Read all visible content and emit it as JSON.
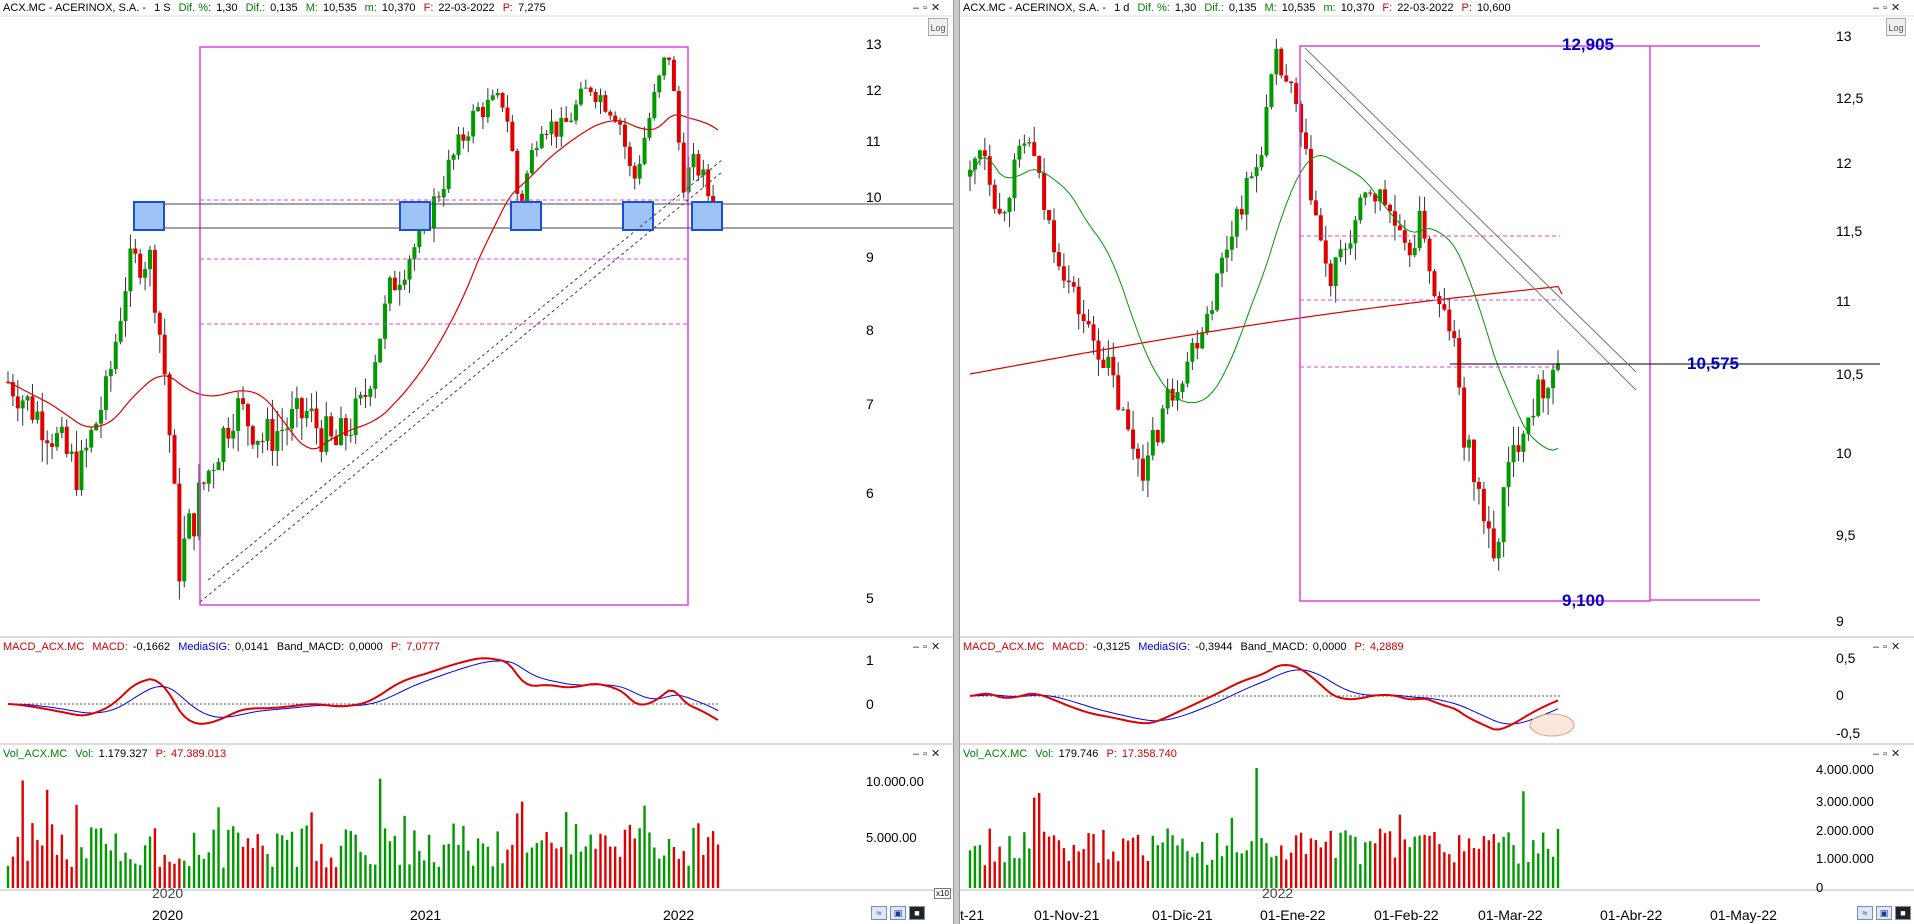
{
  "left": {
    "header": {
      "symbol": "ACX.MC - ACERINOX, S.A. -",
      "period": "1 S",
      "dif_pct_label": "Dif. %:",
      "dif_pct": "1,30",
      "dif_label": "Dif.:",
      "dif": "0,135",
      "max_label": "M:",
      "max": "10,535",
      "min_label": "m:",
      "min": "10,370",
      "date_label": "F:",
      "date": "22-03-2022",
      "price_label": "P:",
      "price": "7,275"
    },
    "log_label": "Log",
    "macd_header": {
      "name": "MACD_ACX.MC",
      "macd_label": "MACD:",
      "macd": "-0,1662",
      "sig_label": "MediaSIG:",
      "sig": "0,0141",
      "band_label": "Band_MACD:",
      "band": "0,0000",
      "p_label": "P:",
      "p": "7,0777"
    },
    "vol_header": {
      "name": "Vol_ACX.MC",
      "vol_label": "Vol:",
      "vol": "1.179.327",
      "p_label": "P:",
      "p": "47.389.013"
    },
    "x10_label": "x10",
    "chart_data": {
      "type": "candlestick",
      "price_axis_ticks": [
        13,
        12,
        11,
        10,
        9,
        8,
        7,
        6,
        5
      ],
      "macd_axis_ticks": [
        "1",
        "0"
      ],
      "volume_axis_ticks": [
        "10.000.00",
        "5.000.00"
      ],
      "year_labels": [
        "2020",
        "2021",
        "2022"
      ],
      "inner_year_label": "2020",
      "colors": {
        "up": "#009900",
        "down": "#e00000",
        "ma": "#e00000",
        "macd": "#e00000",
        "signal": "#0000ff",
        "boxes": "#1a4fd6",
        "fibo": "#e040e0"
      }
    }
  },
  "right": {
    "header": {
      "symbol": "ACX.MC - ACERINOX, S.A. -",
      "period": "1 d",
      "dif_pct_label": "Dif. %:",
      "dif_pct": "1,30",
      "dif_label": "Dif.:",
      "dif": "0,135",
      "max_label": "M:",
      "max": "10,535",
      "min_label": "m:",
      "min": "10,370",
      "date_label": "F:",
      "date": "22-03-2022",
      "price_label": "P:",
      "price": "10,600"
    },
    "log_label": "Log",
    "macd_header": {
      "name": "MACD_ACX.MC",
      "macd_label": "MACD:",
      "macd": "-0,3125",
      "sig_label": "MediaSIG:",
      "sig": "-0,3944",
      "band_label": "Band_MACD:",
      "band": "0,0000",
      "p_label": "P:",
      "p": "4,2889"
    },
    "vol_header": {
      "name": "Vol_ACX.MC",
      "vol_label": "Vol:",
      "vol": "179.746",
      "p_label": "P:",
      "p": "17.358.740"
    },
    "chart_data": {
      "type": "candlestick",
      "price_axis_ticks": [
        "13",
        "12,5",
        "12",
        "11,5",
        "11",
        "10,5",
        "10",
        "9,5",
        "9"
      ],
      "macd_axis_ticks": [
        "0,5",
        "0",
        "-0,5"
      ],
      "volume_axis_ticks": [
        "4.000.000",
        "3.000.000",
        "2.000.000",
        "1.000.000",
        "0"
      ],
      "date_labels": [
        "t-21",
        "01-Nov-21",
        "01-Dic-21",
        "01-Ene-22",
        "01-Feb-22",
        "01-Mar-22",
        "01-Abr-22",
        "01-May-22"
      ],
      "inner_year_label": "2022",
      "annotations": [
        "12,905",
        "10,575",
        "9,100"
      ],
      "colors": {
        "up": "#009900",
        "down": "#e00000",
        "ma_long": "#e00000",
        "ma_short": "#009900",
        "labels": "#0000cc"
      }
    }
  }
}
